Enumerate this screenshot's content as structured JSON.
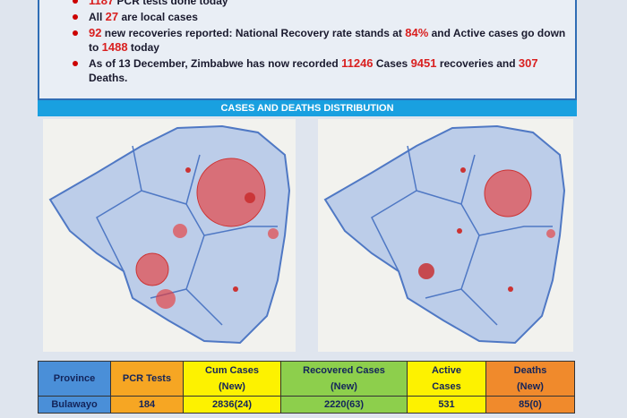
{
  "bullets": [
    [
      {
        "text": "1187",
        "red": true
      },
      {
        "text": " PCR tests done today"
      }
    ],
    [
      {
        "text": "All "
      },
      {
        "text": "27",
        "red": true
      },
      {
        "text": " are local cases"
      }
    ],
    [
      {
        "text": "92",
        "red": true
      },
      {
        "text": " new recoveries reported: National Recovery rate stands at "
      },
      {
        "text": "84%",
        "red": true
      },
      {
        "text": " and Active cases go down to "
      },
      {
        "text": "1488",
        "red": true
      },
      {
        "text": " today"
      }
    ],
    [
      {
        "text": "As of 13 December, Zimbabwe has now recorded "
      },
      {
        "text": "11246",
        "red": true
      },
      {
        "text": " Cases "
      },
      {
        "text": "9451",
        "red": true
      },
      {
        "text": " recoveries and "
      },
      {
        "text": "307",
        "red": true
      },
      {
        "text": " Deaths."
      }
    ]
  ],
  "banner": "CASES AND DEATHS DISTRIBUTION",
  "table": {
    "columns": [
      {
        "label": "Province",
        "color": "#4a8fd8",
        "width": 80
      },
      {
        "label": "PCR Tests",
        "color": "#f6a623",
        "width": 80
      },
      {
        "label": "Cum Cases\n(New)",
        "color": "#fdf200",
        "width": 108
      },
      {
        "label": "Recovered Cases\n(New)",
        "color": "#8dcf4c",
        "width": 140
      },
      {
        "label": "Active\nCases",
        "color": "#fdf200",
        "width": 87
      },
      {
        "label": "Deaths\n(New)",
        "color": "#f08a2c",
        "width": 98
      }
    ],
    "rows": [
      [
        "Bulawayo",
        "184",
        "2836(24)",
        "2220(63)",
        "531",
        "85(0)"
      ]
    ]
  }
}
